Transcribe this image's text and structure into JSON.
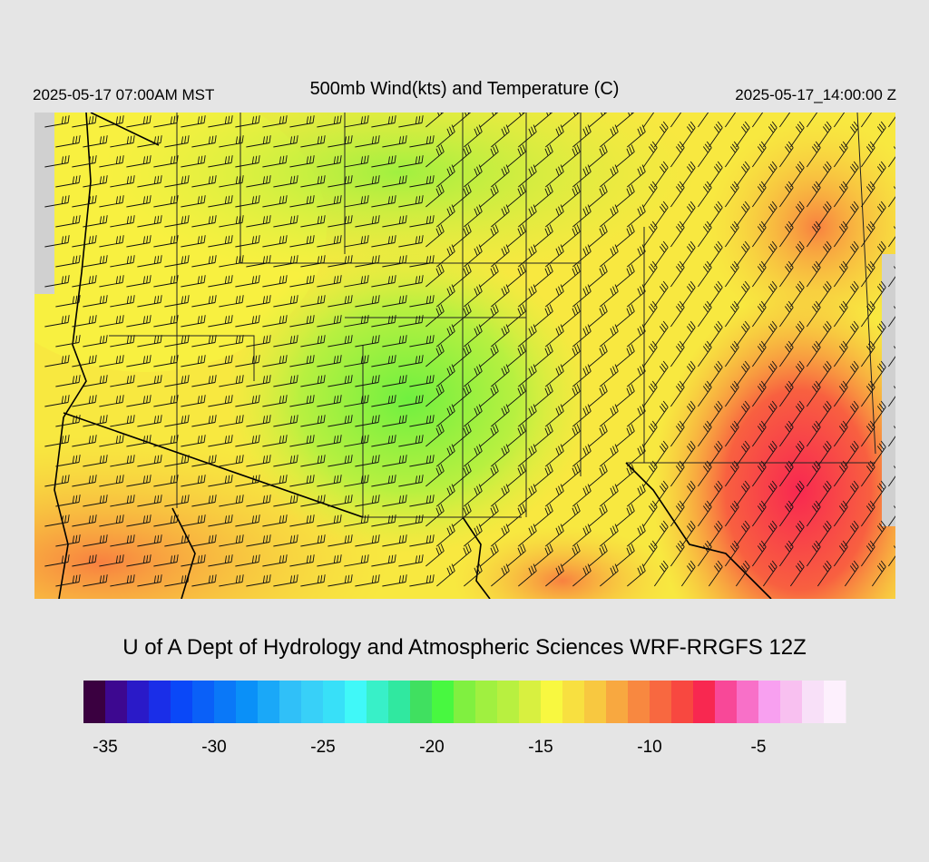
{
  "header": {
    "left": "2025-05-17 07:00AM MST",
    "title": "500mb Wind(kts) and Temperature (C)",
    "right": "2025-05-17_14:00:00 Z"
  },
  "footer": "U of A Dept of Hydrology and Atmospheric Sciences WRF-RRGFS 12Z",
  "colorbar": {
    "range": [
      -36,
      -1
    ],
    "colors": [
      "#3a0040",
      "#3d0890",
      "#2a1ac8",
      "#1a2ee8",
      "#0a48f8",
      "#0a60f8",
      "#0a78f8",
      "#0a90f8",
      "#1aa8f8",
      "#30c0f8",
      "#38d0f8",
      "#38e0f8",
      "#40f8f8",
      "#38f0c8",
      "#30e8a0",
      "#40e060",
      "#48f840",
      "#80f040",
      "#a0f040",
      "#b8f040",
      "#d8f040",
      "#f8f840",
      "#f8e040",
      "#f8c840",
      "#f8a840",
      "#f88840",
      "#f86840",
      "#f84840",
      "#f82850",
      "#f84898",
      "#f870c8",
      "#f8a0f0",
      "#f8c0f0",
      "#f8e0f8",
      "#fdf0fd"
    ],
    "ticks": [
      -35,
      -30,
      -25,
      -20,
      -15,
      -10,
      -5
    ]
  }
}
